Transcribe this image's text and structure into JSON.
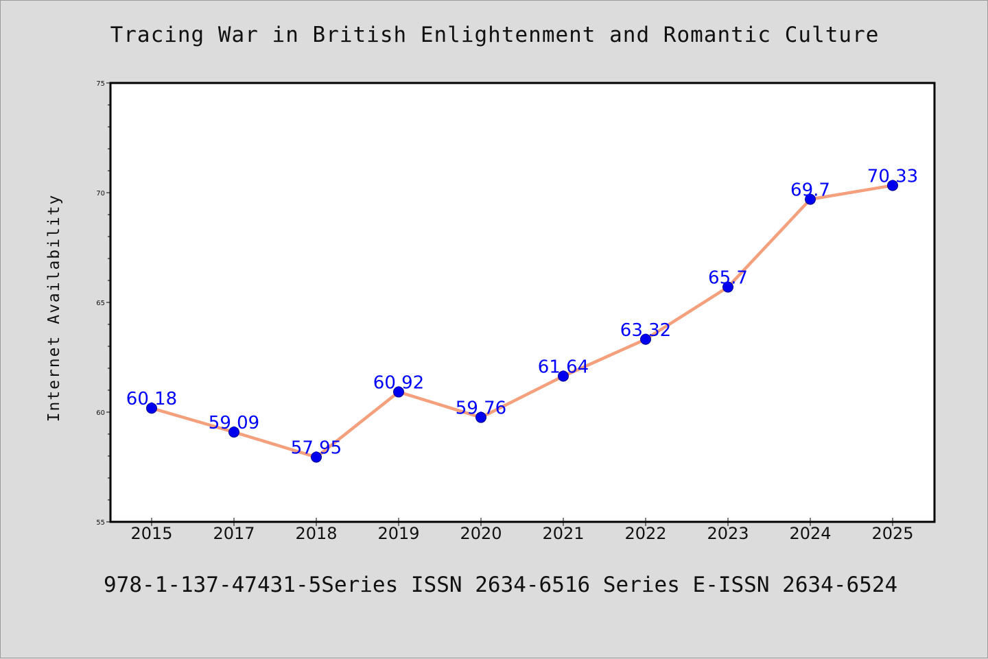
{
  "chart_data": {
    "type": "line",
    "title": "Tracing War in British Enlightenment and Romantic Culture",
    "xlabel": "",
    "ylabel": "Internet Availability",
    "categories": [
      "2015",
      "2017",
      "2018",
      "2019",
      "2020",
      "2021",
      "2022",
      "2023",
      "2024",
      "2025"
    ],
    "series": [
      {
        "values": [
          60.18,
          59.09,
          57.95,
          60.92,
          59.76,
          61.64,
          63.32,
          65.7,
          69.7,
          70.33
        ],
        "data_labels": [
          "60.18",
          "59.09",
          "57.95",
          "60.92",
          "59.76",
          "61.64",
          "63.32",
          "65.7",
          "69.7",
          "70.33"
        ]
      }
    ],
    "ylim": [
      55,
      75
    ],
    "y_ticks": [
      "55",
      "60",
      "65",
      "70",
      "75"
    ],
    "grid": false,
    "legend": "none",
    "colors": {
      "line": "#f4a07c",
      "marker": "#0000ee",
      "marker_edge": "#00008b",
      "data_label": "#0000ff",
      "background": "#dcdcdc",
      "plot_background": "#ffffff"
    }
  },
  "footer": {
    "text": "978-1-137-47431-5Series ISSN 2634-6516 Series E-ISSN 2634-6524"
  }
}
